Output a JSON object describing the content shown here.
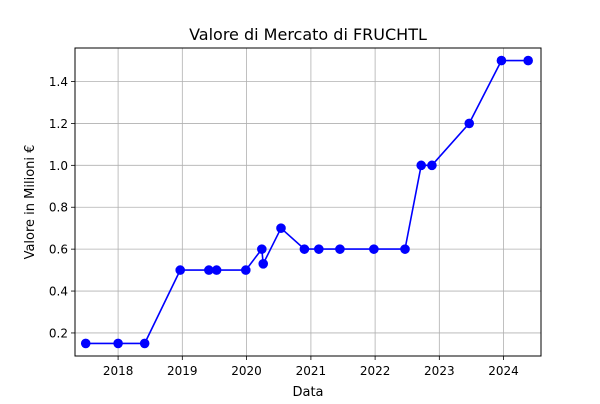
{
  "chart_data": {
    "type": "line",
    "title": "Valore di Mercato di FRUCHTL",
    "xlabel": "Data",
    "ylabel": "Valore in Milioni €",
    "x_type": "date",
    "xlim": [
      "2017-05-01",
      "2024-08-01"
    ],
    "ylim": [
      0.09,
      1.56
    ],
    "x_ticks": [
      {
        "date": "2018-01-01",
        "label": "2018"
      },
      {
        "date": "2019-01-01",
        "label": "2019"
      },
      {
        "date": "2020-01-01",
        "label": "2020"
      },
      {
        "date": "2021-01-01",
        "label": "2021"
      },
      {
        "date": "2022-01-01",
        "label": "2022"
      },
      {
        "date": "2023-01-01",
        "label": "2023"
      },
      {
        "date": "2024-01-01",
        "label": "2024"
      }
    ],
    "y_ticks": [
      {
        "value": 0.2,
        "label": "0.2"
      },
      {
        "value": 0.4,
        "label": "0.4"
      },
      {
        "value": 0.6,
        "label": "0.6"
      },
      {
        "value": 0.8,
        "label": "0.8"
      },
      {
        "value": 1.0,
        "label": "1.0"
      },
      {
        "value": 1.2,
        "label": "1.2"
      },
      {
        "value": 1.4,
        "label": "1.4"
      }
    ],
    "grid": true,
    "series": [
      {
        "color": "#0000ff",
        "marker": "circle",
        "points": [
          {
            "x": "2017-07-01",
            "y": 0.15
          },
          {
            "x": "2018-01-01",
            "y": 0.15
          },
          {
            "x": "2018-06-01",
            "y": 0.15
          },
          {
            "x": "2018-12-20",
            "y": 0.5
          },
          {
            "x": "2019-06-01",
            "y": 0.5
          },
          {
            "x": "2019-07-15",
            "y": 0.5
          },
          {
            "x": "2019-12-28",
            "y": 0.5
          },
          {
            "x": "2020-03-28",
            "y": 0.6
          },
          {
            "x": "2020-04-05",
            "y": 0.53
          },
          {
            "x": "2020-07-15",
            "y": 0.7
          },
          {
            "x": "2020-11-25",
            "y": 0.6
          },
          {
            "x": "2021-02-15",
            "y": 0.6
          },
          {
            "x": "2021-06-15",
            "y": 0.6
          },
          {
            "x": "2021-12-25",
            "y": 0.6
          },
          {
            "x": "2022-06-20",
            "y": 0.6
          },
          {
            "x": "2022-09-20",
            "y": 1.0
          },
          {
            "x": "2022-11-20",
            "y": 1.0
          },
          {
            "x": "2023-06-20",
            "y": 1.2
          },
          {
            "x": "2023-12-20",
            "y": 1.5
          },
          {
            "x": "2024-05-20",
            "y": 1.5
          }
        ]
      }
    ]
  }
}
